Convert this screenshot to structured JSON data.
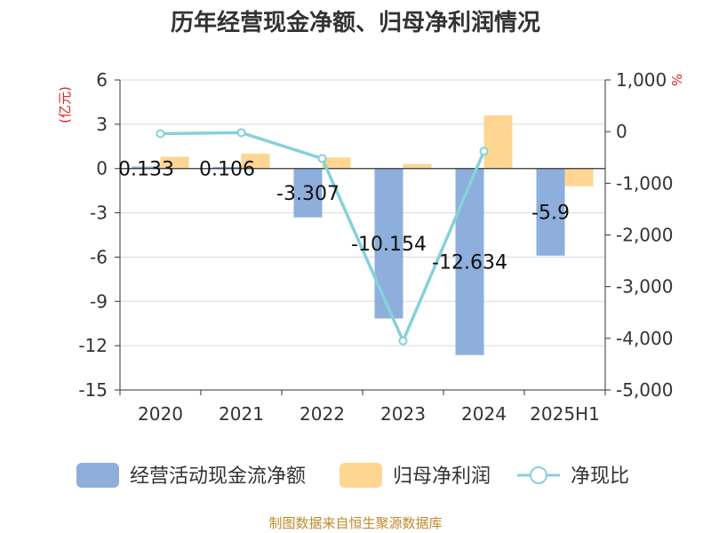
{
  "chart_data": {
    "type": "bar",
    "title": "历年经营现金净额、归母净利润情况",
    "categories": [
      "2020",
      "2021",
      "2022",
      "2023",
      "2024",
      "2025H1"
    ],
    "y_left": {
      "unit": "(亿元)",
      "ylim": [
        -15,
        6
      ],
      "ticks": [
        6,
        3,
        0,
        -3,
        -6,
        -9,
        -12,
        -15
      ]
    },
    "y_right": {
      "unit": "%",
      "ylim": [
        -5000,
        1000
      ],
      "ticks": [
        1000,
        0,
        -1000,
        -2000,
        -3000,
        -4000,
        -5000
      ],
      "tick_labels": [
        "1,000",
        "0",
        "-1,000",
        "-2,000",
        "-3,000",
        "-4,000",
        "-5,000"
      ]
    },
    "series": [
      {
        "name": "经营活动现金流净额",
        "type": "bar",
        "axis": "left",
        "color": "#8eaedb",
        "values": [
          0.133,
          0.106,
          -3.307,
          -10.154,
          -12.634,
          -5.9
        ],
        "labels": [
          "0.133",
          "0.106",
          "-3.307",
          "-10.154",
          "-12.634",
          "-5.9"
        ]
      },
      {
        "name": "归母净利润",
        "type": "bar",
        "axis": "left",
        "color": "#ffd592",
        "values": [
          0.8,
          1.0,
          0.75,
          0.3,
          3.6,
          -1.2
        ]
      },
      {
        "name": "净现比",
        "type": "line",
        "axis": "right",
        "color": "#86d1da",
        "values": [
          -40,
          -20,
          -520,
          -4050,
          -380,
          null
        ]
      }
    ],
    "grid": true,
    "legend_position": "bottom"
  },
  "source": "制图数据来自恒生聚源数据库"
}
